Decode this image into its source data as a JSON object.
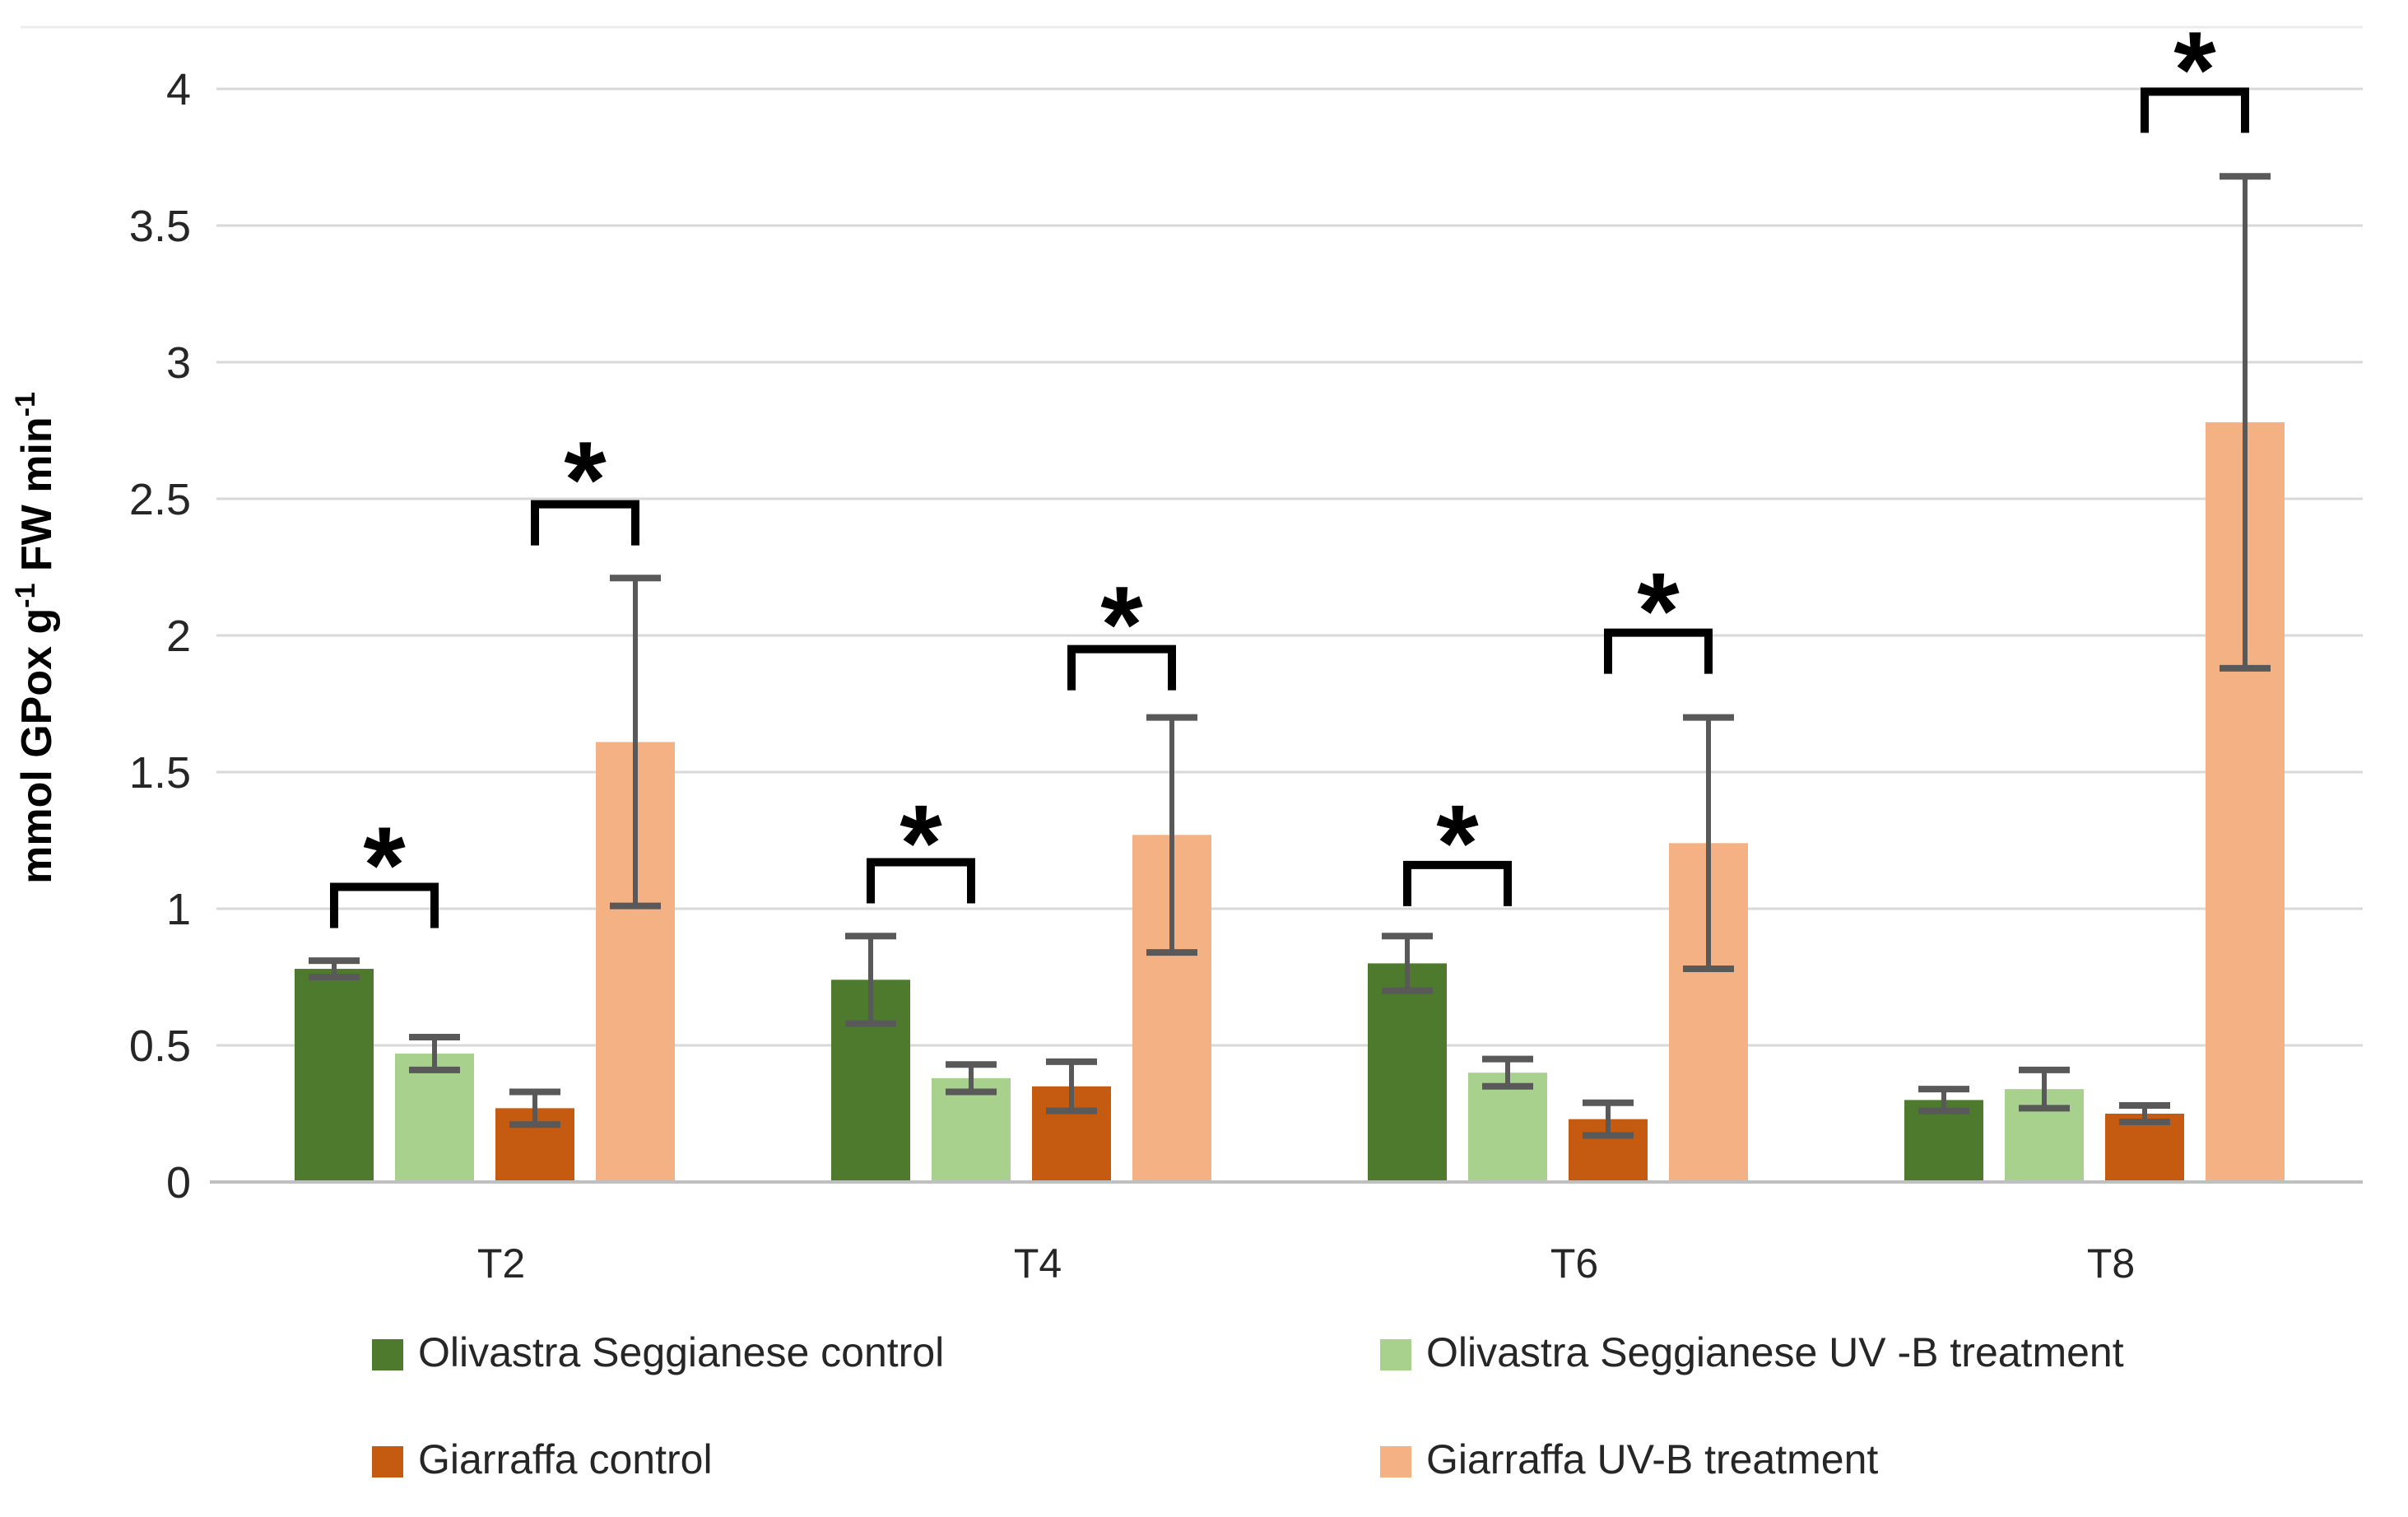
{
  "figure": {
    "background": "#ffffff"
  },
  "chart_data": {
    "type": "bar",
    "title": "",
    "xlabel": "",
    "ylabel": "mmol GPox g⁻¹ FW min⁻¹",
    "ylabel_parts": [
      {
        "text": "mmol GPox g",
        "sup": false
      },
      {
        "text": "-1",
        "sup": true
      },
      {
        "text": " FW min",
        "sup": false
      },
      {
        "text": "-1",
        "sup": true
      }
    ],
    "categories": [
      "T2",
      "T4",
      "T6",
      "T8"
    ],
    "ylim": [
      0,
      4
    ],
    "ytick_labels": [
      "0",
      "0.5",
      "1",
      "1.5",
      "2",
      "2.5",
      "3",
      "3.5",
      "4"
    ],
    "yticks": [
      0,
      0.5,
      1,
      1.5,
      2,
      2.5,
      3,
      3.5,
      4
    ],
    "grid": true,
    "legend_position": "bottom",
    "series": [
      {
        "name": "Olivastra Seggianese control",
        "color": "#4d7a2c",
        "values": [
          0.78,
          0.74,
          0.8,
          0.3
        ],
        "errors": [
          0.03,
          0.16,
          0.1,
          0.04
        ]
      },
      {
        "name": "Olivastra Seggianese UV -B treatment",
        "color": "#a9d18e",
        "values": [
          0.47,
          0.38,
          0.4,
          0.34
        ],
        "errors": [
          0.06,
          0.05,
          0.05,
          0.07
        ]
      },
      {
        "name": "Giarraffa control",
        "color": "#c55a11",
        "values": [
          0.27,
          0.35,
          0.23,
          0.25
        ],
        "errors": [
          0.06,
          0.09,
          0.06,
          0.03
        ]
      },
      {
        "name": "Giarraffa  UV-B treatment",
        "color": "#f4b183",
        "values": [
          1.61,
          1.27,
          1.24,
          2.78
        ],
        "errors": [
          0.6,
          0.43,
          0.46,
          0.9
        ]
      }
    ],
    "significance_brackets": [
      {
        "category": "T2",
        "series_pair": [
          0,
          1
        ],
        "line_y": 1.08,
        "star_y": 1.22,
        "label": "*"
      },
      {
        "category": "T2",
        "series_pair": [
          2,
          3
        ],
        "line_y": 2.48,
        "star_y": 2.63,
        "label": "*"
      },
      {
        "category": "T4",
        "series_pair": [
          0,
          1
        ],
        "line_y": 1.17,
        "star_y": 1.3,
        "label": "*"
      },
      {
        "category": "T4",
        "series_pair": [
          2,
          3
        ],
        "line_y": 1.95,
        "star_y": 2.1,
        "label": "*"
      },
      {
        "category": "T6",
        "series_pair": [
          0,
          1
        ],
        "line_y": 1.16,
        "star_y": 1.3,
        "label": "*"
      },
      {
        "category": "T6",
        "series_pair": [
          2,
          3
        ],
        "line_y": 2.01,
        "star_y": 2.15,
        "label": "*"
      },
      {
        "category": "T8",
        "series_pair": [
          2,
          3
        ],
        "line_y": 3.99,
        "star_y": 4.13,
        "label": "*"
      }
    ],
    "colors": {
      "error_bar": "#595959",
      "gridline": "#d9d9d9",
      "axis_line": "#bfbfbf",
      "top_artifact_line": "#ececec",
      "bracket": "#000000",
      "text": "#262626"
    }
  }
}
